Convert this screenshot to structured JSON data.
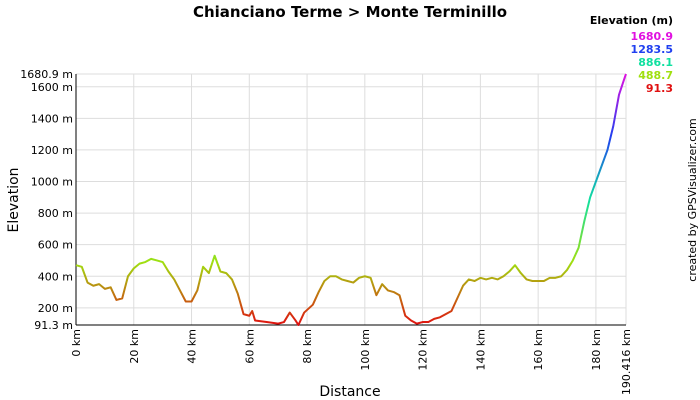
{
  "chart_data": {
    "type": "line",
    "title": "Chianciano Terme > Monte Terminillo",
    "x_label": "Distance",
    "y_label": "Elevation",
    "credit": "created by GPSVisualizer.com",
    "x": [
      0,
      2,
      4,
      6,
      8,
      10,
      12,
      14,
      16,
      18,
      20,
      22,
      24,
      26,
      28,
      30,
      32,
      34,
      36,
      38,
      40,
      42,
      44,
      46,
      48,
      50,
      52,
      54,
      56,
      58,
      60,
      61,
      62,
      66,
      70,
      72,
      74,
      76,
      77,
      79,
      82,
      84,
      86,
      88,
      90,
      92,
      94,
      96,
      98,
      100,
      102,
      104,
      106,
      108,
      110,
      112,
      114,
      116,
      118,
      120,
      122,
      124,
      126,
      128,
      130,
      132,
      134,
      136,
      138,
      140,
      142,
      144,
      146,
      148,
      150,
      152,
      154,
      156,
      158,
      160,
      162,
      164,
      166,
      168,
      170,
      172,
      174,
      176,
      178,
      180,
      182,
      184,
      186,
      188,
      190,
      190.416
    ],
    "values": [
      470,
      460,
      360,
      340,
      350,
      320,
      330,
      250,
      260,
      400,
      450,
      480,
      490,
      510,
      500,
      490,
      430,
      380,
      310,
      240,
      240,
      310,
      460,
      420,
      530,
      430,
      420,
      380,
      290,
      160,
      150,
      180,
      120,
      110,
      100,
      110,
      170,
      120,
      91.3,
      170,
      220,
      300,
      370,
      400,
      400,
      380,
      370,
      360,
      390,
      400,
      390,
      280,
      350,
      310,
      300,
      280,
      150,
      120,
      100,
      110,
      110,
      130,
      140,
      160,
      180,
      260,
      340,
      380,
      370,
      390,
      380,
      390,
      380,
      400,
      430,
      470,
      420,
      380,
      370,
      370,
      370,
      390,
      390,
      400,
      440,
      500,
      580,
      750,
      900,
      1000,
      1100,
      1200,
      1350,
      1550,
      1660,
      1680.9
    ],
    "xlim": [
      0,
      190.416
    ],
    "ylim": [
      91.3,
      1680.9
    ],
    "xticks": [
      {
        "value": 0,
        "label": "0 km"
      },
      {
        "value": 20,
        "label": "20 km"
      },
      {
        "value": 40,
        "label": "40 km"
      },
      {
        "value": 60,
        "label": "60 km"
      },
      {
        "value": 80,
        "label": "80 km"
      },
      {
        "value": 100,
        "label": "100 km"
      },
      {
        "value": 120,
        "label": "120 km"
      },
      {
        "value": 140,
        "label": "140 km"
      },
      {
        "value": 160,
        "label": "160 km"
      },
      {
        "value": 180,
        "label": "180 km"
      },
      {
        "value": 190.416,
        "label": "190.416 km"
      }
    ],
    "yticks": [
      {
        "value": 91.3,
        "label": "91.3 m"
      },
      {
        "value": 200,
        "label": "200 m"
      },
      {
        "value": 400,
        "label": "400 m"
      },
      {
        "value": 600,
        "label": "600 m"
      },
      {
        "value": 800,
        "label": "800 m"
      },
      {
        "value": 1000,
        "label": "1000 m"
      },
      {
        "value": 1200,
        "label": "1200 m"
      },
      {
        "value": 1400,
        "label": "1400 m"
      },
      {
        "value": 1600,
        "label": "1600 m"
      },
      {
        "value": 1680.9,
        "label": "1680.9 m"
      }
    ],
    "grid": true,
    "legend": {
      "title": "Elevation (m)",
      "values": [
        1680.9,
        1283.5,
        886.1,
        488.7,
        91.3
      ],
      "colors": [
        "#e010e0",
        "#2040f0",
        "#10e0a0",
        "#a0e010",
        "#e01010"
      ]
    }
  }
}
